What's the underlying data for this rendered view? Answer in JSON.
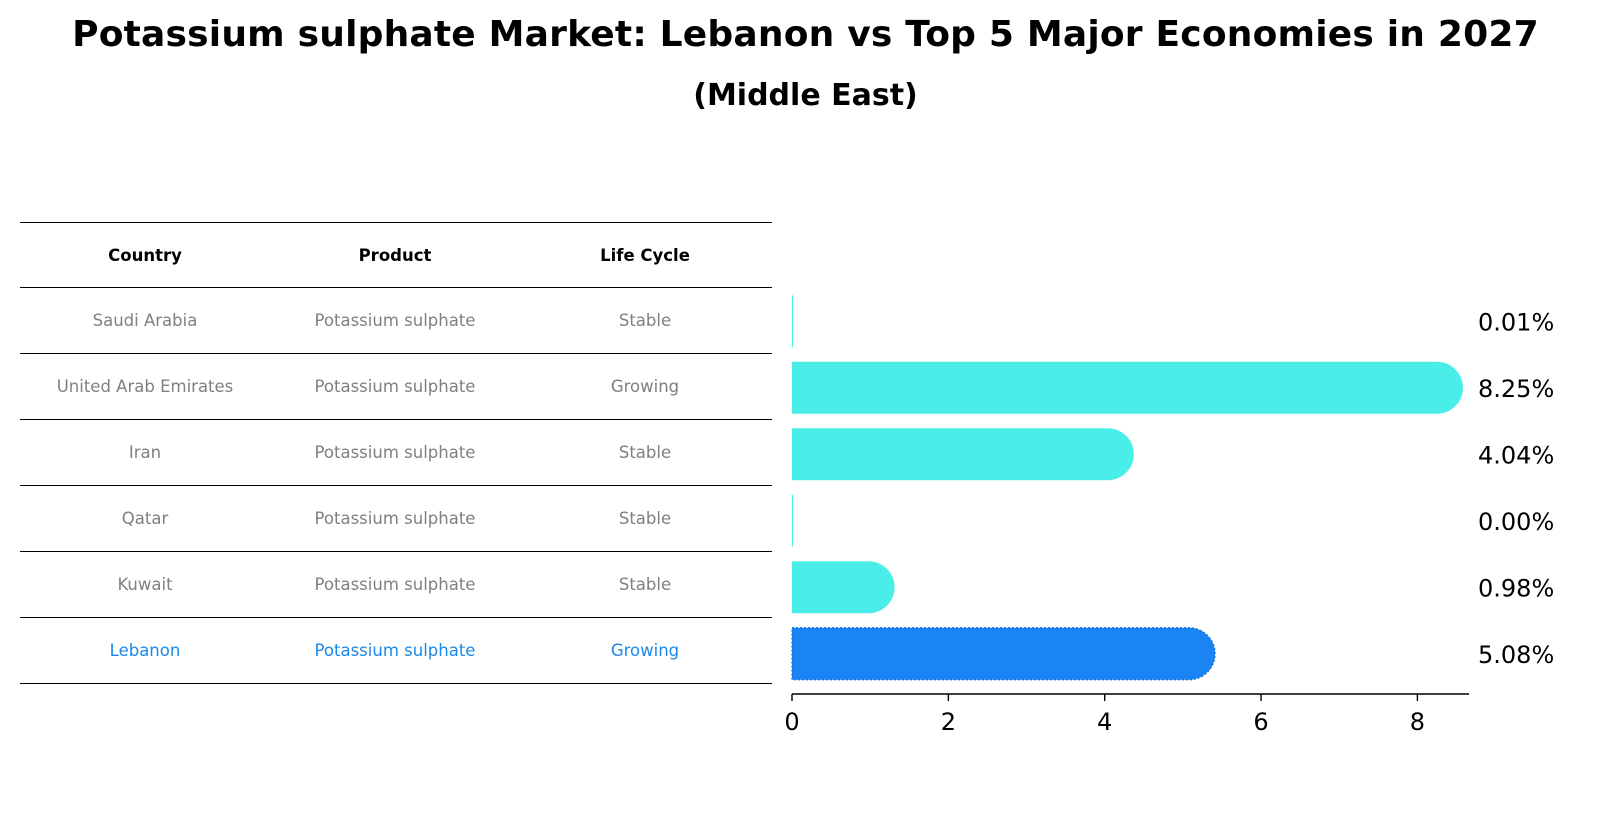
{
  "title": "Potassium sulphate Market: Lebanon vs Top 5 Major Economies in 2027",
  "subtitle": "(Middle East)",
  "table": {
    "headers": [
      "Country",
      "Product",
      "Life Cycle"
    ],
    "rows": [
      [
        "Saudi Arabia",
        "Potassium sulphate",
        "Stable"
      ],
      [
        "United Arab Emirates",
        "Potassium sulphate",
        "Growing"
      ],
      [
        "Iran",
        "Potassium sulphate",
        "Stable"
      ],
      [
        "Qatar",
        "Potassium sulphate",
        "Stable"
      ],
      [
        "Kuwait",
        "Potassium sulphate",
        "Stable"
      ],
      [
        "Lebanon",
        "Potassium sulphate",
        "Growing"
      ]
    ]
  },
  "colors": {
    "bar": "#4aeee9",
    "highlight": "#1a84f5",
    "highlight_text": "#1a88e8",
    "muted_text": "#808080"
  },
  "chart_data": {
    "type": "bar",
    "orientation": "horizontal",
    "categories": [
      "Saudi Arabia",
      "United Arab Emirates",
      "Iran",
      "Qatar",
      "Kuwait",
      "Lebanon"
    ],
    "values": [
      0.01,
      8.25,
      4.04,
      0.0,
      0.98,
      5.08
    ],
    "value_labels": [
      "0.01%",
      "8.25%",
      "4.04%",
      "0.00%",
      "0.98%",
      "5.08%"
    ],
    "highlight_category": "Lebanon",
    "xlim": [
      0,
      8.66
    ],
    "xticks": [
      0,
      2,
      4,
      6,
      8
    ],
    "xlabel": "",
    "ylabel": "",
    "grid": false,
    "legend": "none"
  }
}
